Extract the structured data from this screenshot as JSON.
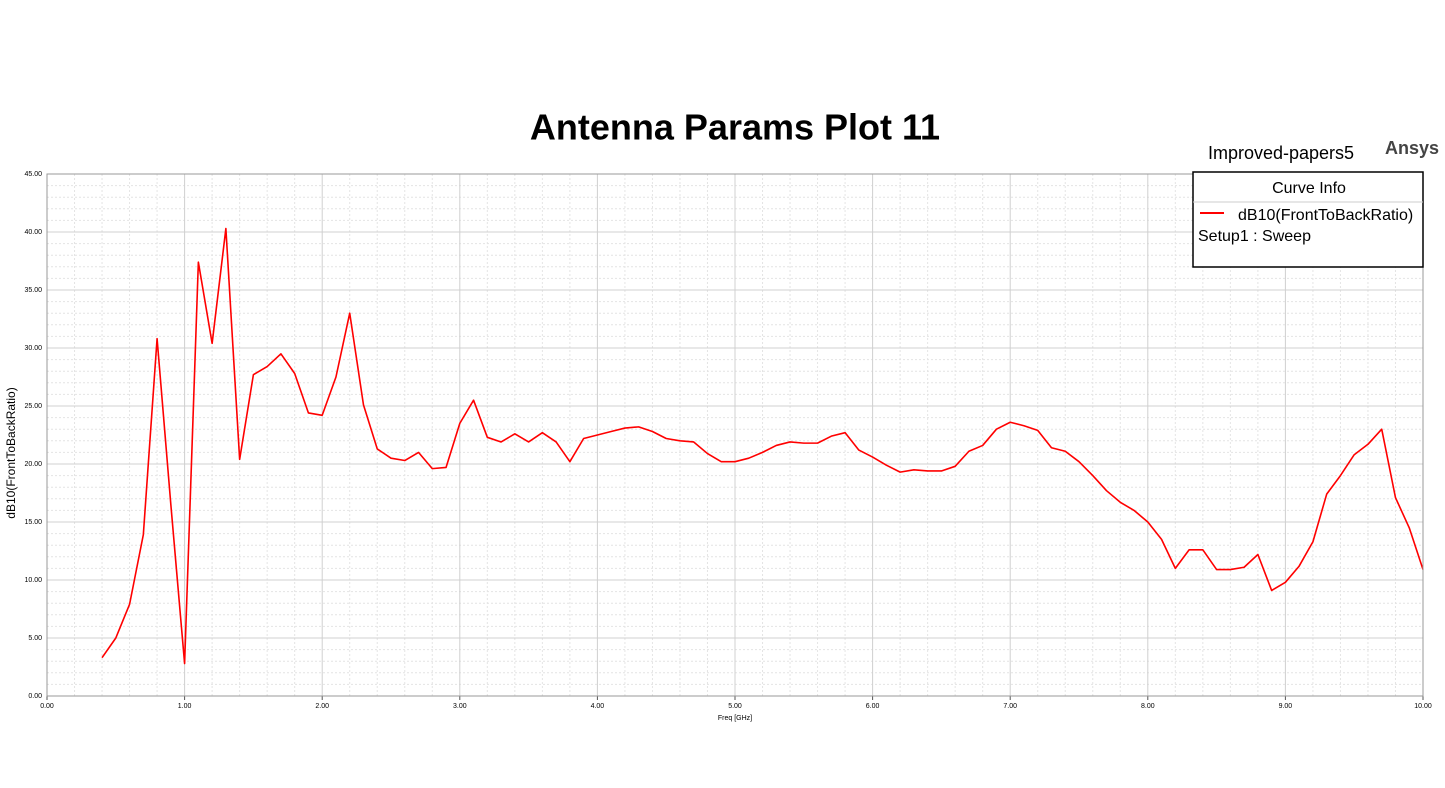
{
  "chart_data": {
    "type": "line",
    "title": "Antenna Params Plot 11",
    "subtitle": "Improved-papers5",
    "brand": "Ansys",
    "legend_title": "Curve Info",
    "legend_note": "Setup1 : Sweep",
    "legend": "top-right",
    "x_label": "Freq [GHz]",
    "y_label": "dB10(FrontToBackRatio)",
    "grid": true,
    "x": [
      0.4,
      0.5,
      0.6,
      0.7,
      0.8,
      0.9,
      1.0,
      1.1,
      1.2,
      1.3,
      1.4,
      1.5,
      1.6,
      1.7,
      1.8,
      1.9,
      2.0,
      2.1,
      2.2,
      2.3,
      2.4,
      2.5,
      2.6,
      2.7,
      2.8,
      2.9,
      3.0,
      3.1,
      3.2,
      3.3,
      3.4,
      3.5,
      3.6,
      3.7,
      3.8,
      3.9,
      4.0,
      4.1,
      4.2,
      4.3,
      4.4,
      4.5,
      4.6,
      4.7,
      4.8,
      4.9,
      5.0,
      5.1,
      5.2,
      5.3,
      5.4,
      5.5,
      5.6,
      5.7,
      5.8,
      5.9,
      6.0,
      6.1,
      6.2,
      6.3,
      6.4,
      6.5,
      6.6,
      6.7,
      6.8,
      6.9,
      7.0,
      7.1,
      7.2,
      7.3,
      7.4,
      7.5,
      7.6,
      7.7,
      7.8,
      7.9,
      8.0,
      8.1,
      8.2,
      8.3,
      8.4,
      8.5,
      8.6,
      8.7,
      8.8,
      8.9,
      9.0,
      9.1,
      9.2,
      9.3,
      9.4,
      9.5,
      9.6,
      9.7,
      9.8,
      9.9,
      10.0
    ],
    "series": [
      {
        "name": "dB10(FrontToBackRatio)",
        "color": "#ff0000",
        "values": [
          3.3,
          5.0,
          7.9,
          13.9,
          30.8,
          16.5,
          2.8,
          37.4,
          30.4,
          40.3,
          20.4,
          27.7,
          28.4,
          29.5,
          27.8,
          24.4,
          24.2,
          27.5,
          33.0,
          25.1,
          21.3,
          20.5,
          20.3,
          21.0,
          19.6,
          19.7,
          23.5,
          25.5,
          22.3,
          21.9,
          22.6,
          21.9,
          22.7,
          21.9,
          20.2,
          22.2,
          22.5,
          22.8,
          23.1,
          23.2,
          22.8,
          22.2,
          22.0,
          21.9,
          20.9,
          20.2,
          20.2,
          20.5,
          21.0,
          21.6,
          21.9,
          21.8,
          21.8,
          22.4,
          22.7,
          21.2,
          20.6,
          19.9,
          19.3,
          19.5,
          19.4,
          19.4,
          19.8,
          21.1,
          21.6,
          23.0,
          23.6,
          23.3,
          22.9,
          21.4,
          21.1,
          20.2,
          19.0,
          17.7,
          16.7,
          16.0,
          15.0,
          13.5,
          11.0,
          12.6,
          12.6,
          10.9,
          10.9,
          11.1,
          12.2,
          9.1,
          9.8,
          11.2,
          13.3,
          17.4,
          19.0,
          20.8,
          21.7,
          23.0,
          17.1,
          14.5,
          10.9
        ]
      }
    ],
    "xlim": [
      0,
      10
    ],
    "xticks": [
      {
        "value": 0,
        "label": "0.00"
      },
      {
        "value": 1,
        "label": "1.00"
      },
      {
        "value": 2,
        "label": "2.00"
      },
      {
        "value": 3,
        "label": "3.00"
      },
      {
        "value": 4,
        "label": "4.00"
      },
      {
        "value": 5,
        "label": "5.00"
      },
      {
        "value": 6,
        "label": "6.00"
      },
      {
        "value": 7,
        "label": "7.00"
      },
      {
        "value": 8,
        "label": "8.00"
      },
      {
        "value": 9,
        "label": "9.00"
      },
      {
        "value": 10,
        "label": "10.00"
      }
    ],
    "ylim": [
      0,
      45
    ],
    "yticks": [
      {
        "value": 0,
        "label": "0.00"
      },
      {
        "value": 5,
        "label": "5.00"
      },
      {
        "value": 10,
        "label": "10.00"
      },
      {
        "value": 15,
        "label": "15.00"
      },
      {
        "value": 20,
        "label": "20.00"
      },
      {
        "value": 25,
        "label": "25.00"
      },
      {
        "value": 30,
        "label": "30.00"
      },
      {
        "value": 35,
        "label": "35.00"
      },
      {
        "value": 40,
        "label": "40.00"
      },
      {
        "value": 45,
        "label": "45.00"
      }
    ]
  }
}
